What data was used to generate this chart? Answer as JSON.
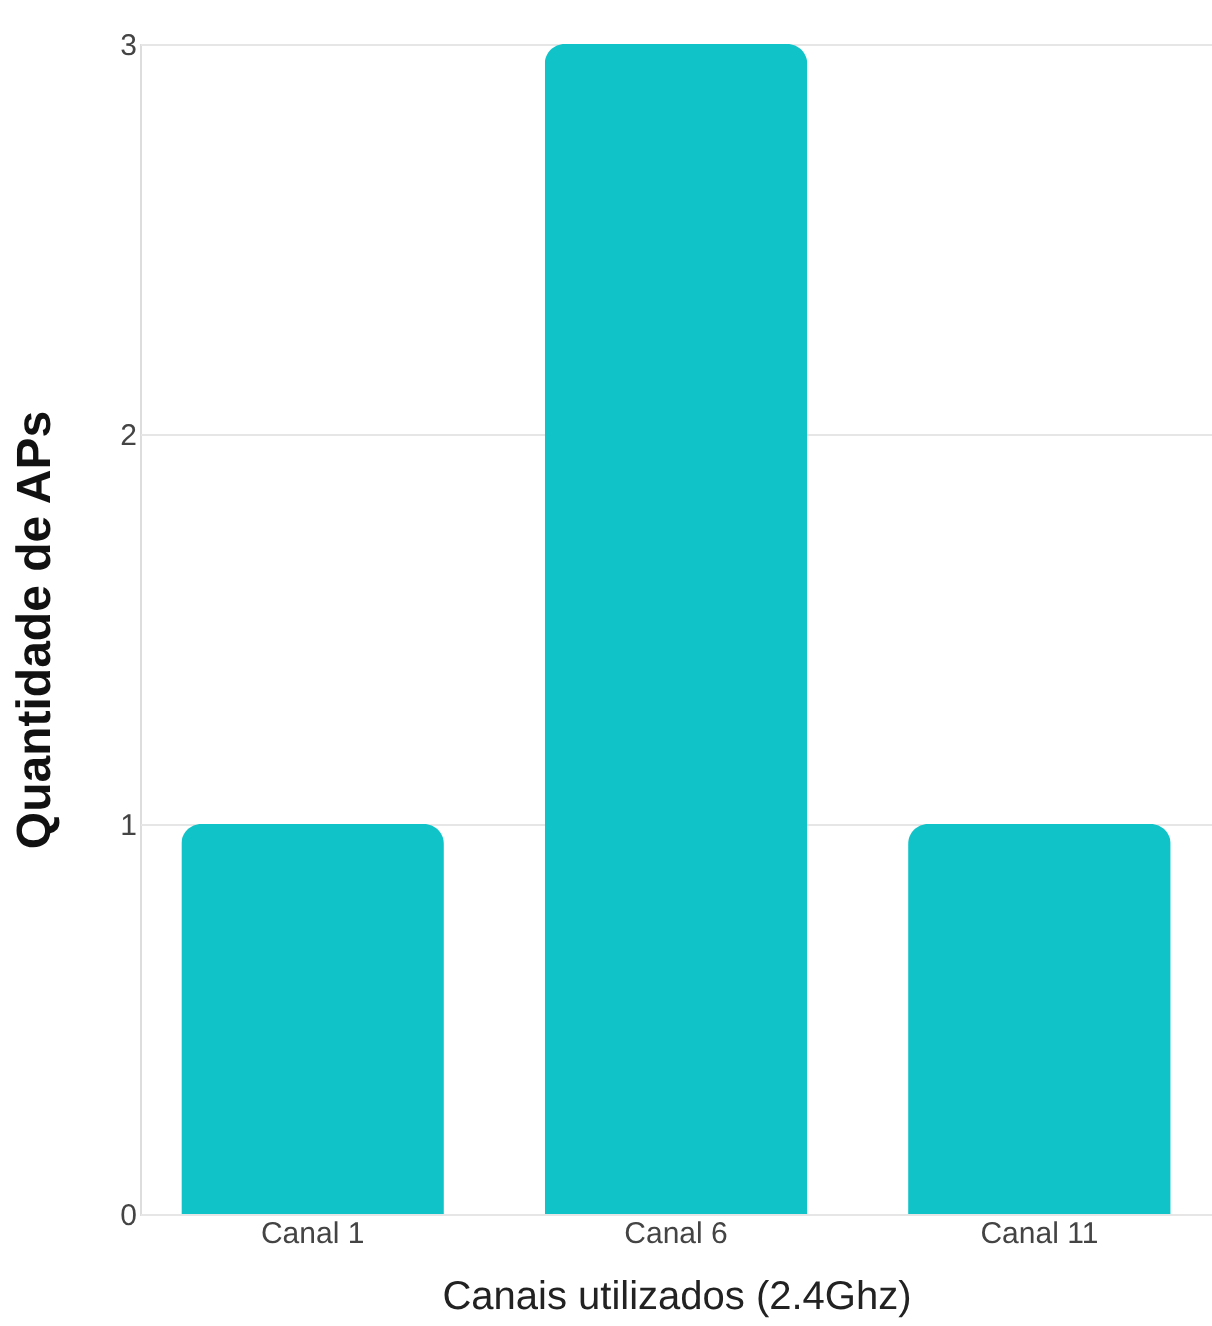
{
  "chart_data": {
    "type": "bar",
    "xlabel": "Canais utilizados (2.4Ghz)",
    "ylabel": "Quantidade de APs",
    "categories": [
      "Canal 1",
      "Canal 6",
      "Canal 11"
    ],
    "values": [
      1,
      3,
      1
    ],
    "color": "#10c3c8",
    "ylim": [
      0,
      3
    ],
    "yticks": [
      0,
      1,
      2,
      3
    ],
    "grid": "y"
  }
}
